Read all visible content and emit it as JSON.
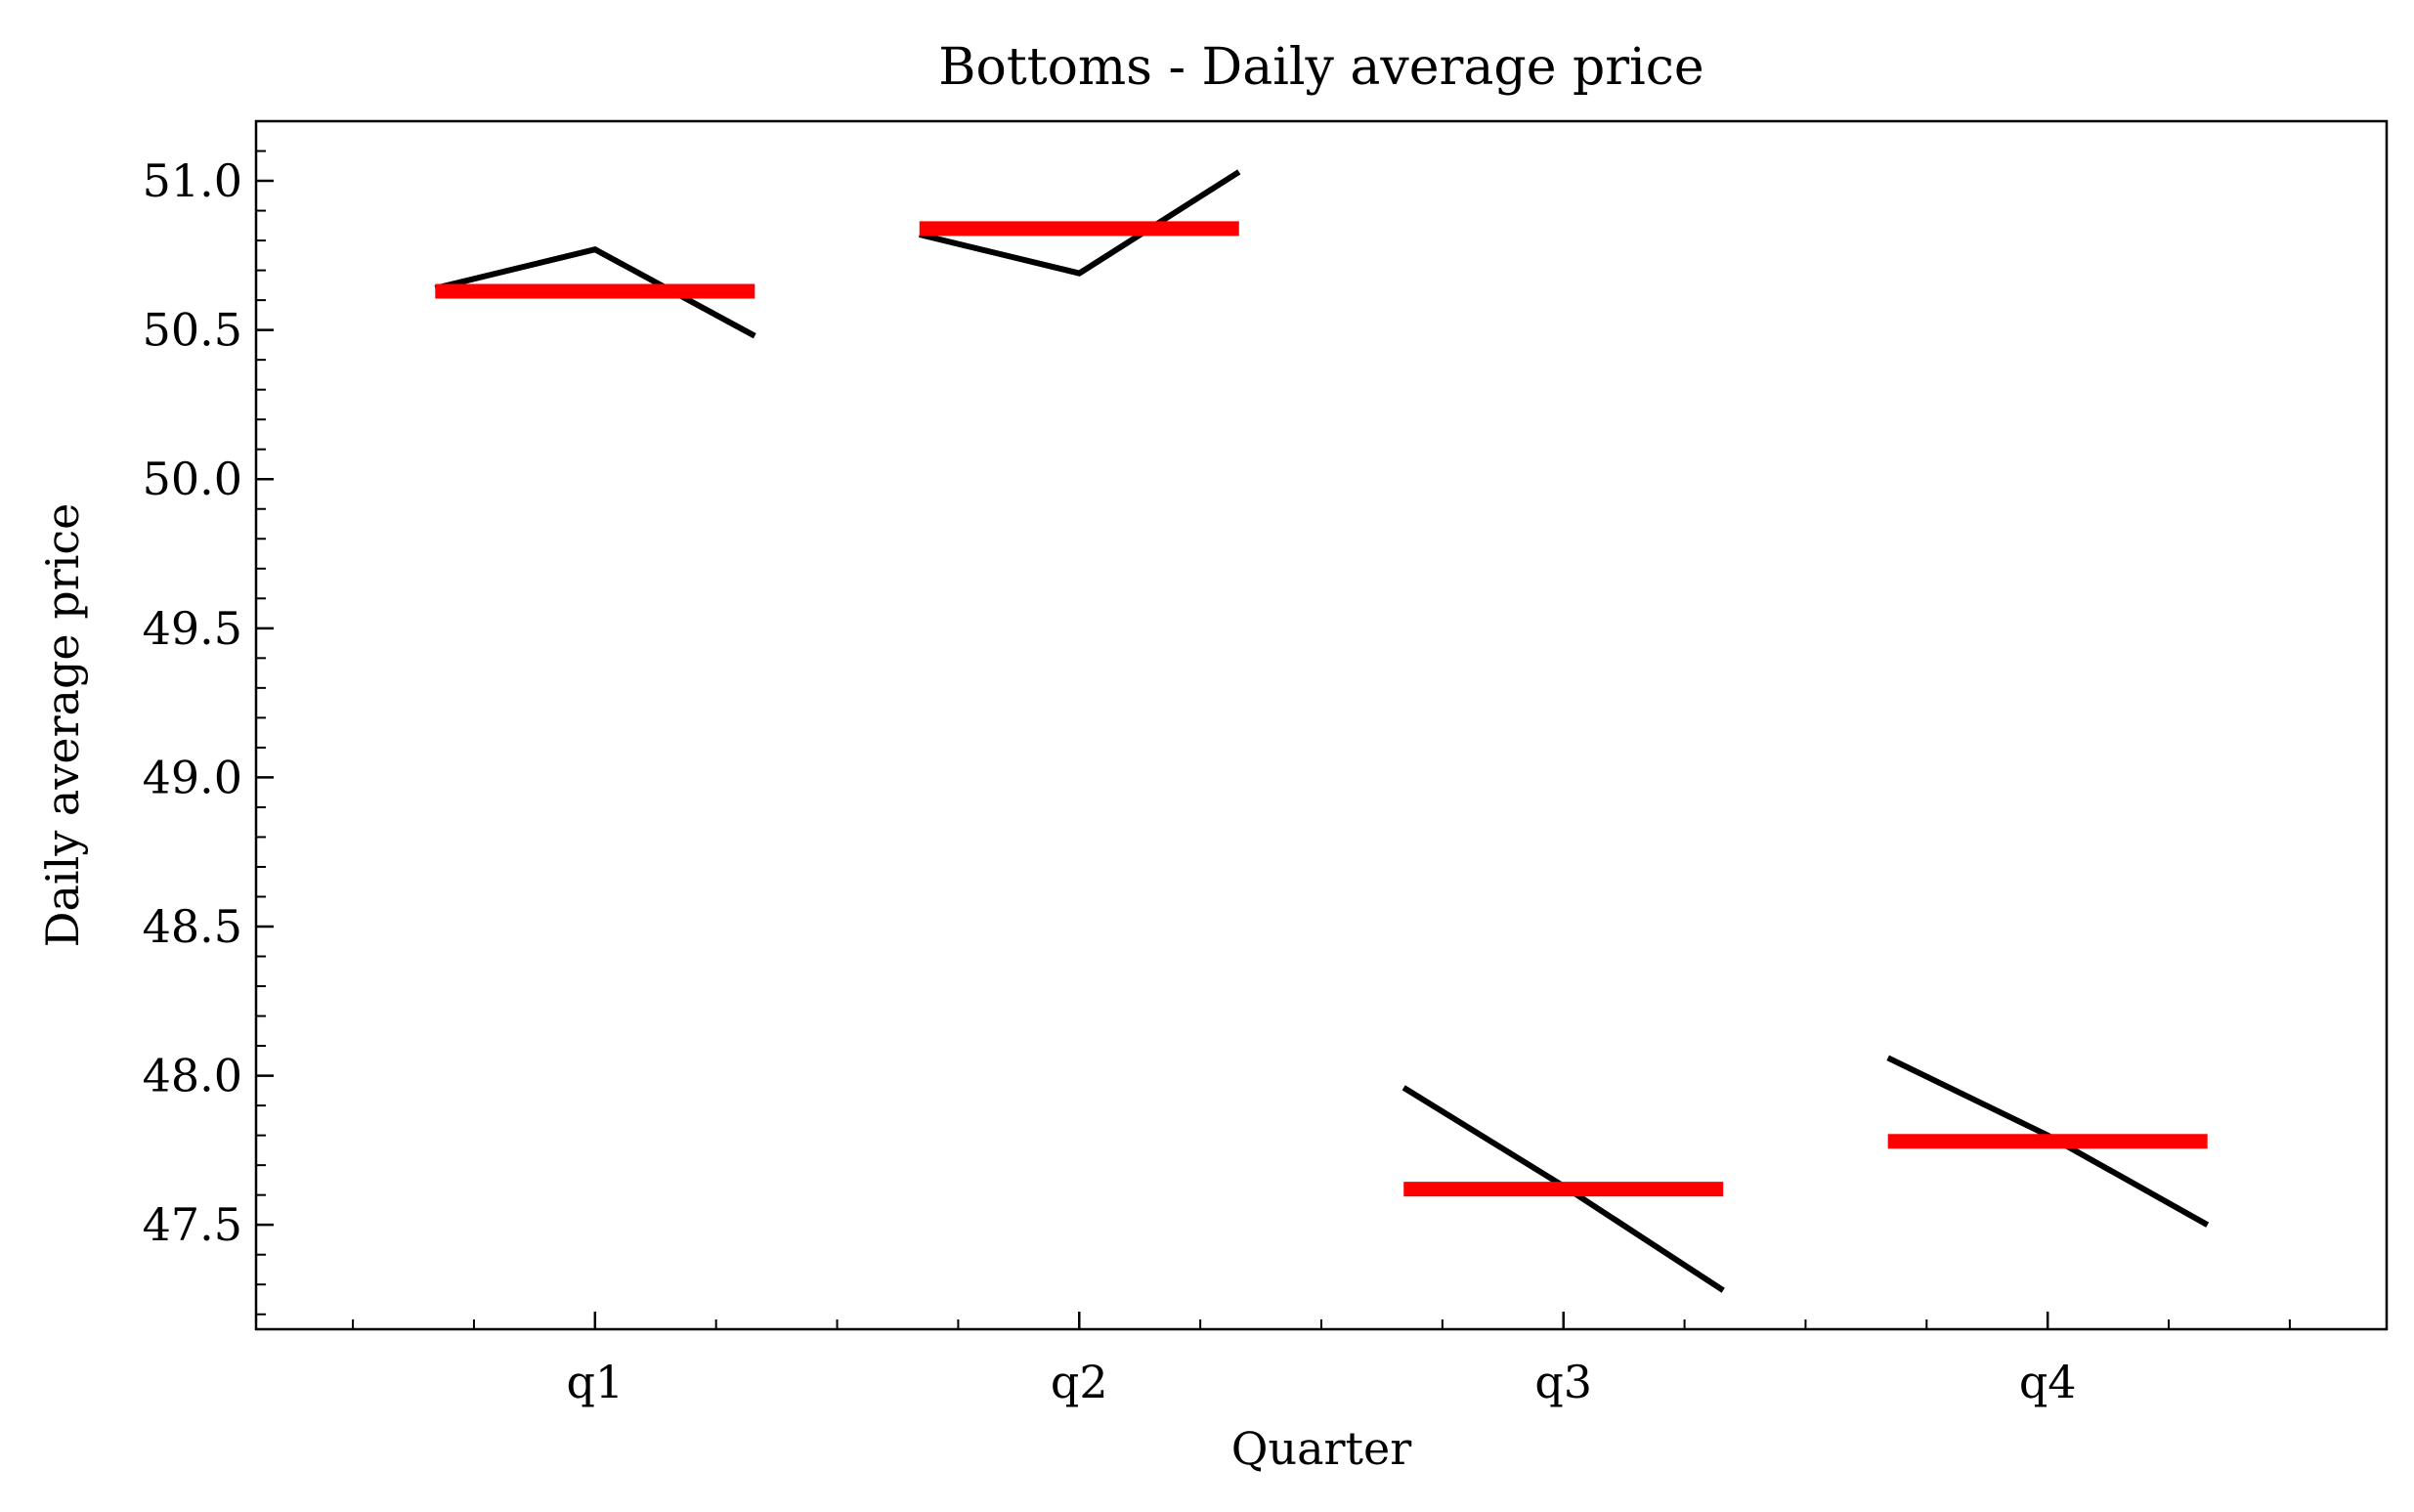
{
  "chart_data": {
    "type": "line",
    "title": "Bottoms - Daily average price",
    "xlabel": "Quarter",
    "ylabel": "Daily average price",
    "categories": [
      "q1",
      "q2",
      "q3",
      "q4"
    ],
    "xlim": [
      -0.7,
      3.7
    ],
    "ylim": [
      47.15,
      51.2
    ],
    "yticks": [
      "47.5",
      "48.0",
      "48.5",
      "49.0",
      "49.5",
      "50.0",
      "50.5",
      "51.0"
    ],
    "grid": false,
    "colors": {
      "daily": "#000000",
      "mean": "#ff0000"
    },
    "groups": [
      {
        "category": "q1",
        "daily": [
          50.64,
          50.77,
          50.48
        ],
        "mean": 50.63
      },
      {
        "category": "q2",
        "daily": [
          50.82,
          50.69,
          51.03
        ],
        "mean": 50.84
      },
      {
        "category": "q3",
        "daily": [
          47.96,
          47.63,
          47.28
        ],
        "mean": 47.62
      },
      {
        "category": "q4",
        "daily": [
          48.06,
          47.8,
          47.5
        ],
        "mean": 47.78
      }
    ]
  }
}
